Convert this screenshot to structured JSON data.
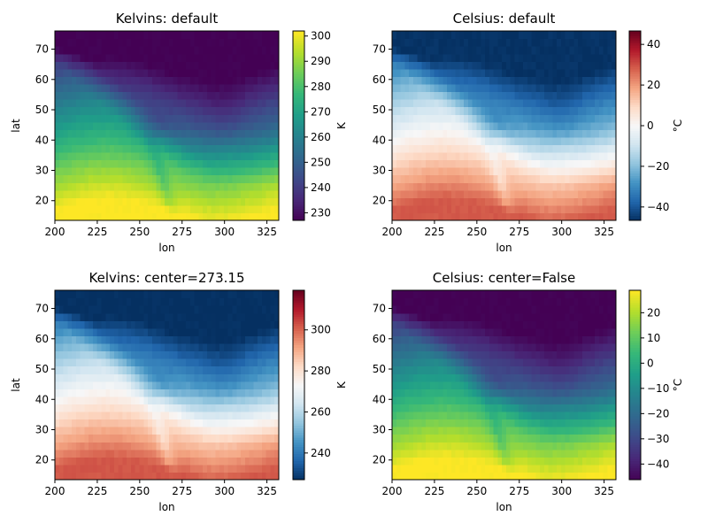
{
  "chart_data": [
    {
      "type": "heatmap",
      "title": "Kelvins: default",
      "xlabel": "lon",
      "ylabel": "lat",
      "colorbar_label": "K",
      "colormap": "viridis",
      "units": "K",
      "offset": 0,
      "xlim": [
        200,
        332
      ],
      "ylim": [
        13.5,
        76
      ],
      "xticks": [
        200,
        225,
        250,
        275,
        300,
        325
      ],
      "yticks": [
        20,
        30,
        40,
        50,
        60,
        70
      ],
      "clim": [
        227,
        302
      ],
      "cbar_ticks": [
        230,
        240,
        250,
        260,
        270,
        280,
        290,
        300
      ]
    },
    {
      "type": "heatmap",
      "title": "Celsius: default",
      "xlabel": "lon",
      "ylabel": "",
      "colorbar_label": "°C",
      "colormap": "RdBu_r",
      "units": "°C",
      "offset": -273.15,
      "xlim": [
        200,
        332
      ],
      "ylim": [
        13.5,
        76
      ],
      "xticks": [
        200,
        225,
        250,
        275,
        300,
        325
      ],
      "yticks": [
        20,
        30,
        40,
        50,
        60,
        70
      ],
      "clim": [
        -46.6,
        46.6
      ],
      "cbar_ticks": [
        -40,
        -20,
        0,
        20,
        40
      ]
    },
    {
      "type": "heatmap",
      "title": "Kelvins: center=273.15",
      "xlabel": "lon",
      "ylabel": "lat",
      "colorbar_label": "K",
      "colormap": "RdBu_r",
      "units": "K",
      "offset": 0,
      "xlim": [
        200,
        332
      ],
      "ylim": [
        13.5,
        76
      ],
      "xticks": [
        200,
        225,
        250,
        275,
        300,
        325
      ],
      "yticks": [
        20,
        30,
        40,
        50,
        60,
        70
      ],
      "clim": [
        227,
        319.3
      ],
      "cbar_ticks": [
        240,
        260,
        280,
        300
      ]
    },
    {
      "type": "heatmap",
      "title": "Celsius: center=False",
      "xlabel": "lon",
      "ylabel": "",
      "colorbar_label": "°C",
      "colormap": "viridis",
      "units": "°C",
      "offset": -273.15,
      "xlim": [
        200,
        332
      ],
      "ylim": [
        13.5,
        76
      ],
      "xticks": [
        200,
        225,
        250,
        275,
        300,
        325
      ],
      "yticks": [
        20,
        30,
        40,
        50,
        60,
        70
      ],
      "clim": [
        -46.2,
        28.9
      ],
      "cbar_ticks": [
        -40,
        -30,
        -20,
        -10,
        0,
        10,
        20
      ]
    }
  ],
  "field": {
    "lon_range": [
      200,
      332
    ],
    "lat_range": [
      13.5,
      76
    ],
    "grid": [
      53,
      25
    ],
    "temperature_K_approx_range": [
      227,
      302
    ]
  }
}
